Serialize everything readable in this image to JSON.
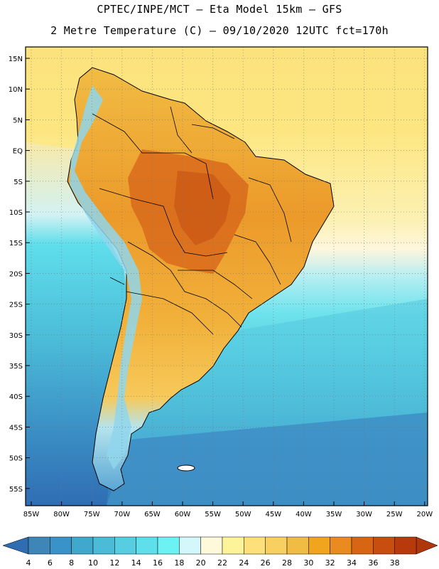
{
  "header": {
    "line1": "CPTEC/INPE/MCT –  Eta Model 15km – GFS",
    "line2": "2 Metre Temperature (C) – 09/10/2020 12UTC fct=170h"
  },
  "map": {
    "region": "South America",
    "lat_labels": [
      "15N",
      "10N",
      "5N",
      "EQ",
      "5S",
      "10S",
      "15S",
      "20S",
      "25S",
      "30S",
      "35S",
      "40S",
      "45S",
      "50S",
      "55S"
    ],
    "lon_labels": [
      "85W",
      "80W",
      "75W",
      "70W",
      "65W",
      "60W",
      "55W",
      "50W",
      "45W",
      "40W",
      "35W",
      "30W",
      "25W",
      "20W"
    ],
    "colors": {
      "ocean_warm": "#fde680",
      "ocean_mid": "#5ad8e4",
      "ocean_cold": "#2f6db3",
      "land_hot": "#e98a1e",
      "land_hottest": "#cd5a12",
      "andes": "#9adcee",
      "border": "#000000"
    }
  },
  "colorbar": {
    "ticks": [
      "4",
      "6",
      "8",
      "10",
      "12",
      "14",
      "16",
      "18",
      "20",
      "22",
      "24",
      "26",
      "28",
      "30",
      "32",
      "34",
      "36",
      "38"
    ],
    "colors": [
      "#3f86b8",
      "#3993c9",
      "#40a8cc",
      "#4bbbd8",
      "#57cde1",
      "#5fdeeb",
      "#6df2f4",
      "#d3f7fa",
      "#fff9dc",
      "#fdf499",
      "#fde07a",
      "#f8d062",
      "#f1bc43",
      "#f1a41d",
      "#e98b1e",
      "#d86513",
      "#c84e10",
      "#b83a0c"
    ],
    "end_left": "#2f6db3",
    "end_right": "#b0370c"
  }
}
